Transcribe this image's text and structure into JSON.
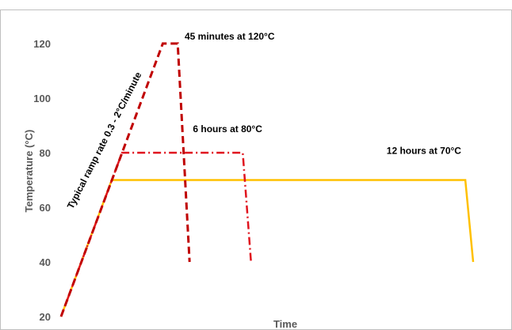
{
  "chart_data": {
    "type": "line",
    "title": "",
    "xlabel": "Time",
    "ylabel": "Temperature (°C)",
    "ylim": [
      20,
      125
    ],
    "yticks": [
      20,
      40,
      60,
      80,
      100,
      120
    ],
    "xlim": [
      0,
      1
    ],
    "grid": false,
    "legend": "none",
    "series": [
      {
        "color": "#c00000",
        "dash": "dash",
        "points": [
          [
            0.0,
            20
          ],
          [
            0.247,
            120
          ],
          [
            0.283,
            120
          ],
          [
            0.312,
            40
          ]
        ]
      },
      {
        "color": "#e0141e",
        "dash": "dashdot",
        "points": [
          [
            0.0,
            20
          ],
          [
            0.148,
            80
          ],
          [
            0.441,
            80
          ],
          [
            0.461,
            40
          ]
        ]
      },
      {
        "color": "#ffc000",
        "dash": "solid",
        "points": [
          [
            0.0,
            20
          ],
          [
            0.123,
            70
          ],
          [
            0.981,
            70
          ],
          [
            1.0,
            40
          ]
        ]
      }
    ],
    "annotations": [
      {
        "text": "45 minutes at 120°C",
        "x": 0.3,
        "y": 121.5,
        "rotate": 0
      },
      {
        "text": "6 hours at 80°C",
        "x": 0.32,
        "y": 87.5,
        "rotate": 0
      },
      {
        "text": "12 hours at 70°C",
        "x": 0.79,
        "y": 79.5,
        "rotate": 0
      },
      {
        "text": "Typical ramp rate 0.3 - 2°C/minute",
        "x": 0.112,
        "y": 84,
        "rotate": -63
      }
    ]
  }
}
